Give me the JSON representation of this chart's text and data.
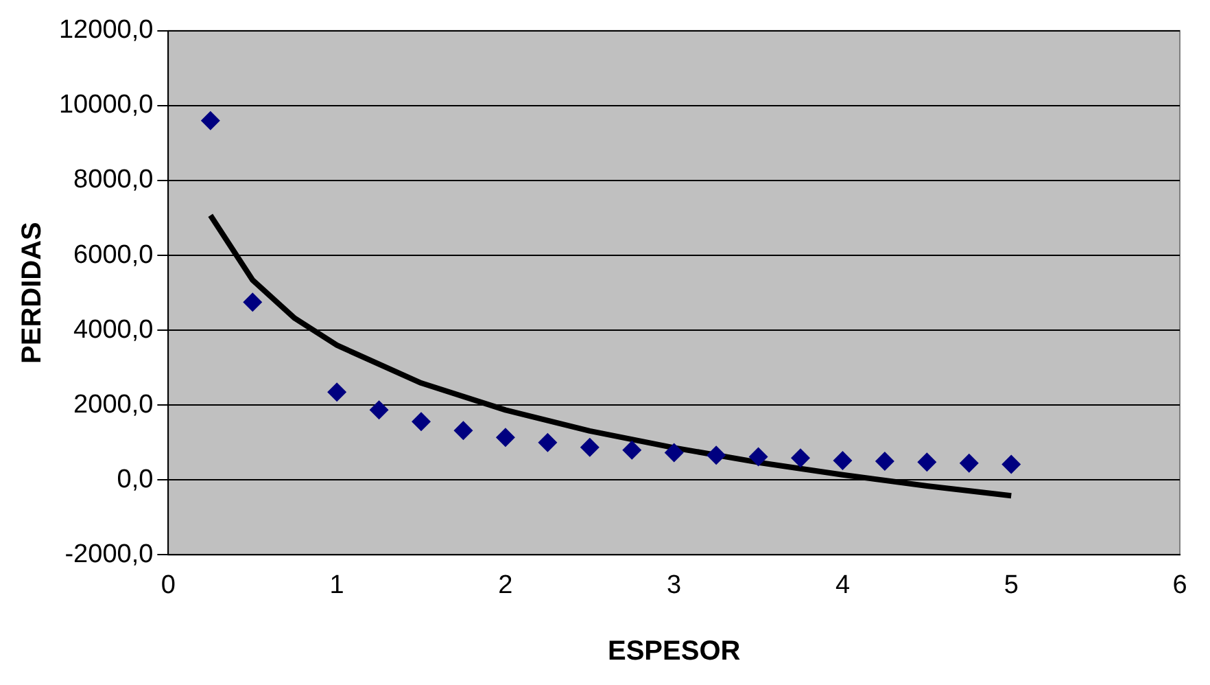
{
  "chart_data": {
    "type": "scatter",
    "xlabel": "ESPESOR",
    "ylabel": "PERDIDAS",
    "xlim": [
      0,
      6
    ],
    "xticks": [
      0,
      1,
      2,
      3,
      4,
      5,
      6
    ],
    "ylim": [
      -2000,
      12000
    ],
    "yticks": [
      {
        "value": -2000,
        "label": "-2000,0"
      },
      {
        "value": 0,
        "label": "0,0"
      },
      {
        "value": 2000,
        "label": "2000,0"
      },
      {
        "value": 4000,
        "label": "4000,0"
      },
      {
        "value": 6000,
        "label": "6000,0"
      },
      {
        "value": 8000,
        "label": "8000,0"
      },
      {
        "value": 10000,
        "label": "10000,0"
      },
      {
        "value": 12000,
        "label": "12000,0"
      }
    ],
    "grid": "y",
    "legend": false,
    "series": [
      {
        "type": "scatter",
        "marker": "diamond",
        "color": "#000080",
        "x": [
          0.25,
          0.5,
          1,
          1.25,
          1.5,
          1.75,
          2,
          2.25,
          2.5,
          2.75,
          3,
          3.25,
          3.5,
          3.75,
          4,
          4.25,
          4.5,
          4.75,
          5
        ],
        "values": [
          9600,
          4750,
          2350,
          1870,
          1560,
          1320,
          1140,
          1000,
          870,
          800,
          730,
          660,
          620,
          590,
          520,
          500,
          480,
          450,
          420
        ]
      },
      {
        "type": "line",
        "marker": "none",
        "line_style": "solid",
        "color": "#000000",
        "x": [
          0.25,
          0.5,
          0.75,
          1,
          1.5,
          2,
          2.5,
          3,
          3.5,
          4,
          4.5,
          5
        ],
        "values": [
          7070,
          5340,
          4320,
          3600,
          2590,
          1870,
          1310,
          860,
          470,
          140,
          -160,
          -420
        ]
      }
    ]
  }
}
